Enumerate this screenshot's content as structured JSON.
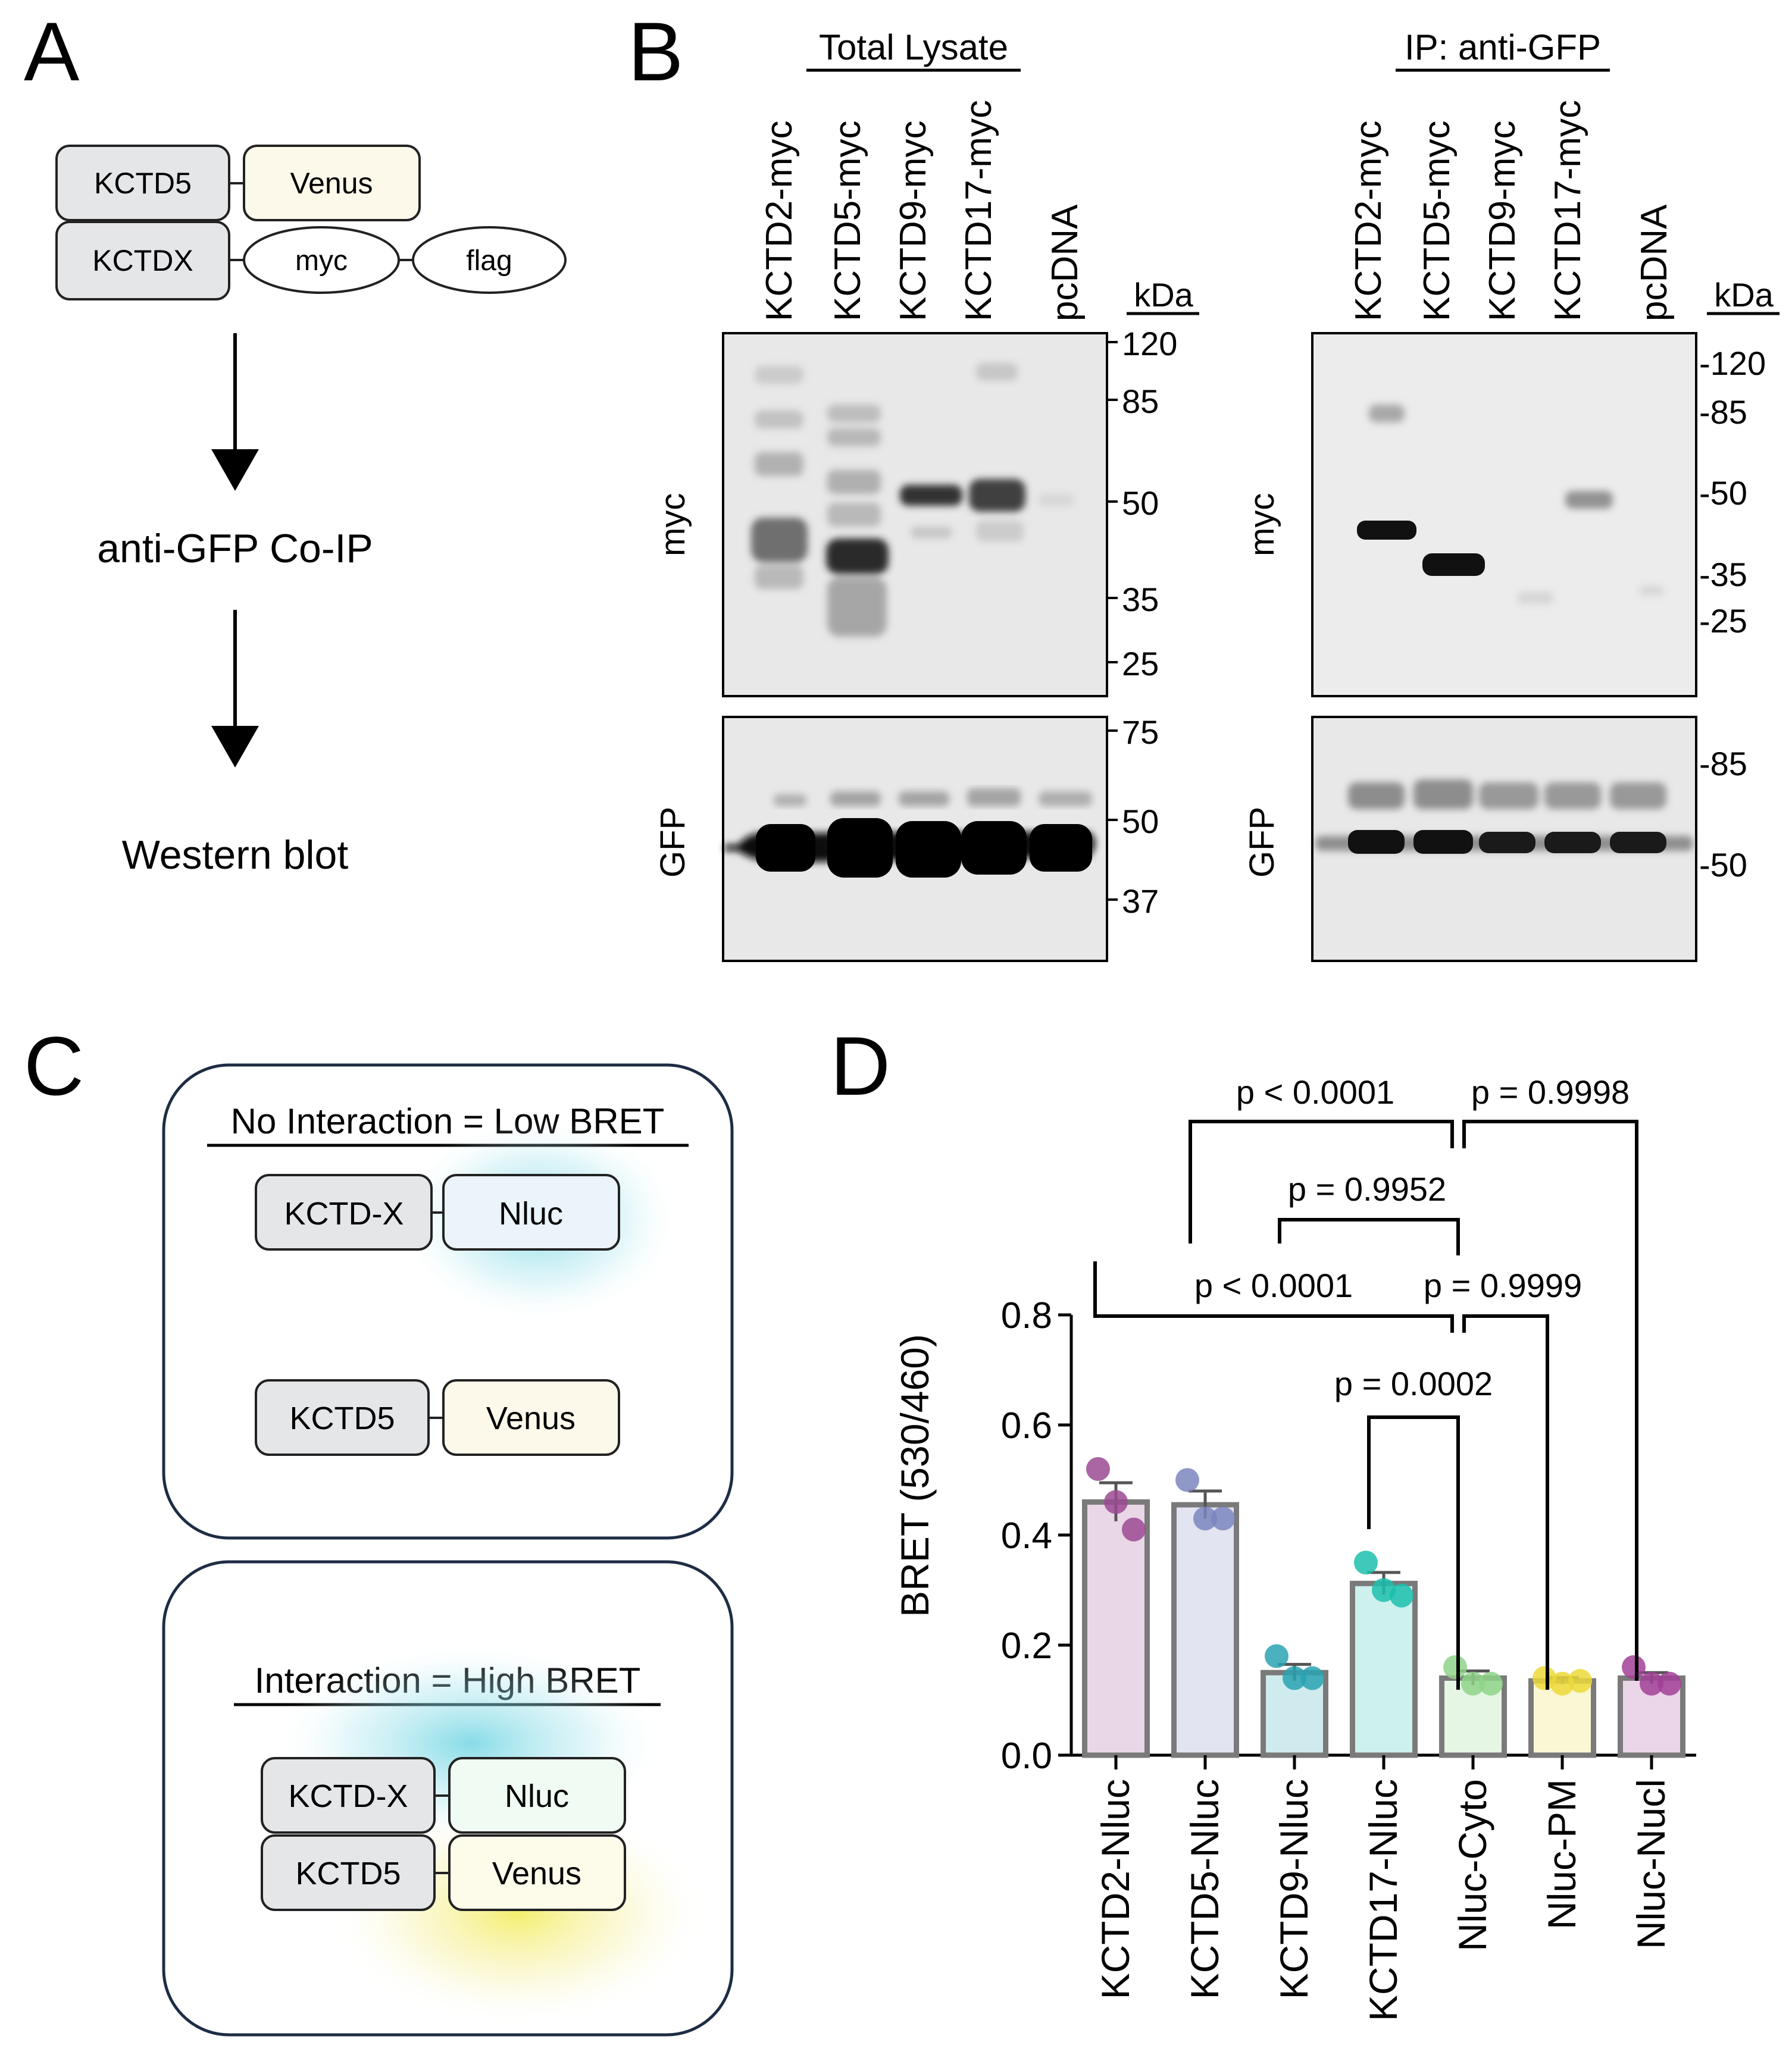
{
  "panel_labels": {
    "a": "A",
    "b": "B",
    "c": "C",
    "d": "D"
  },
  "panel_a": {
    "box_kctd5": "KCTD5",
    "box_venus": "Venus",
    "box_kctdx": "KCTDX",
    "oval_myc": "myc",
    "oval_flag": "flag",
    "step1": "anti-GFP Co-IP",
    "step2": "Western blot"
  },
  "panel_b": {
    "left_heading": "Total Lysate",
    "right_heading": "IP: anti-GFP",
    "lanes": [
      "KCTD2-myc",
      "KCTD5-myc",
      "KCTD9-myc",
      "KCTD17-myc",
      "pcDNA"
    ],
    "kda": "kDa",
    "row_myc": "myc",
    "row_gfp": "GFP",
    "left_myc_markers": [
      "120",
      "85",
      "50",
      "35",
      "25"
    ],
    "left_gfp_markers": [
      "75",
      "50",
      "37"
    ],
    "right_myc_markers": [
      "-120",
      "-85",
      "-50",
      "-35",
      "-25"
    ],
    "right_gfp_markers": [
      "-85",
      "-50"
    ]
  },
  "panel_c": {
    "title_low": "No Interaction = Low BRET",
    "title_high": "Interaction = High BRET",
    "kctdx": "KCTD-X",
    "nluc": "Nluc",
    "kctd5": "KCTD5",
    "venus": "Venus"
  },
  "chart_data": {
    "type": "bar",
    "ylabel": "BRET (530/460)",
    "ylim": [
      0,
      0.8
    ],
    "yticks": [
      "0.0",
      "0.2",
      "0.4",
      "0.6",
      "0.8"
    ],
    "categories": [
      "KCTD2-Nluc",
      "KCTD5-Nluc",
      "KCTD9-Nluc",
      "KCTD17-Nluc",
      "Nluc-Cyto",
      "Nluc-PM",
      "Nluc-Nucl"
    ],
    "values": [
      0.46,
      0.455,
      0.15,
      0.312,
      0.14,
      0.135,
      0.14
    ],
    "sem": [
      0.035,
      0.025,
      0.015,
      0.02,
      0.013,
      0.006,
      0.01
    ],
    "points": [
      [
        0.52,
        0.46,
        0.41
      ],
      [
        0.5,
        0.43,
        0.43
      ],
      [
        0.18,
        0.14,
        0.14
      ],
      [
        0.35,
        0.3,
        0.29
      ],
      [
        0.16,
        0.13,
        0.13
      ],
      [
        0.14,
        0.13,
        0.135
      ],
      [
        0.16,
        0.13,
        0.13
      ]
    ],
    "colors": [
      "#9b4a93",
      "#7b86be",
      "#2aa3b3",
      "#1cbfae",
      "#8fd48a",
      "#ecd93a",
      "#a23f98"
    ],
    "comparisons": [
      {
        "label": "p < 0.0001"
      },
      {
        "label": "p = 0.9998"
      },
      {
        "label": "p = 0.9952"
      },
      {
        "label": "p < 0.0001"
      },
      {
        "label": "p = 0.9999"
      },
      {
        "label": "p = 0.0002"
      }
    ]
  }
}
